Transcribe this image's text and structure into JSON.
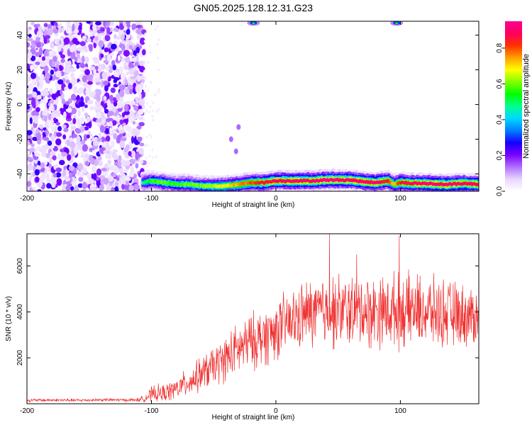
{
  "title": "GN05.2025.128.12.31.G23",
  "chart_data": [
    {
      "type": "heatmap",
      "title": "GN05.2025.128.12.31.G23",
      "xlabel": "Height of straight line (km)",
      "ylabel": "Frequency (Hz)",
      "xlim": [
        -200,
        163
      ],
      "ylim": [
        -50,
        48
      ],
      "xticks": [
        "-200",
        "-100",
        "0",
        "100"
      ],
      "yticks": [
        "-40",
        "-20",
        "0",
        "20",
        "40"
      ],
      "colorbar": {
        "label": "Normalized spectral amplitude",
        "range": [
          0.0,
          0.95
        ],
        "ticks": [
          "0.0",
          "0.2",
          "0.4",
          "0.6",
          "0.8"
        ],
        "colormap": [
          "#ffffff",
          "#e8d5ff",
          "#b070ff",
          "#7a00ff",
          "#1500ff",
          "#0080ff",
          "#00d8ff",
          "#00ff90",
          "#00ff00",
          "#80ff00",
          "#ffff00",
          "#ffa000",
          "#ff3000",
          "#ff0060",
          "#ff0090"
        ]
      },
      "noise_region": {
        "x_range": [
          -200,
          -106
        ],
        "f_range": [
          -50,
          48
        ],
        "note_level": "0.05-0.25"
      },
      "signal_ridge": {
        "x": [
          -107,
          -100,
          -90,
          -80,
          -70,
          -60,
          -50,
          -40,
          -30,
          -20,
          -10,
          0,
          10,
          20,
          30,
          40,
          50,
          60,
          70,
          80,
          90,
          95,
          100,
          110,
          120,
          130,
          140,
          150,
          163
        ],
        "frequency": [
          -45,
          -44,
          -45,
          -46,
          -46,
          -47,
          -47,
          -47,
          -46,
          -45,
          -45,
          -44,
          -44,
          -44,
          -44,
          -43.5,
          -43.5,
          -43.5,
          -44.5,
          -45,
          -44,
          -46,
          -45,
          -45.5,
          -45.5,
          -46,
          -46,
          -45.5,
          -46
        ],
        "amplitude": [
          0.45,
          0.55,
          0.6,
          0.55,
          0.6,
          0.6,
          0.65,
          0.7,
          0.75,
          0.8,
          0.85,
          0.88,
          0.9,
          0.9,
          0.9,
          0.92,
          0.92,
          0.9,
          0.9,
          0.9,
          0.85,
          0.7,
          0.85,
          0.88,
          0.9,
          0.9,
          0.9,
          0.88,
          0.9
        ]
      },
      "top_blobs": [
        {
          "x": -18,
          "frequency": 47
        },
        {
          "x": 97,
          "frequency": 47
        }
      ],
      "stray_points": [
        {
          "x": -32,
          "frequency": -27
        },
        {
          "x": -36,
          "frequency": -20
        },
        {
          "x": -30,
          "frequency": -13
        }
      ]
    },
    {
      "type": "line",
      "xlabel": "Height of straight line (km)",
      "ylabel": "SNR (10 * v/v)",
      "xlim": [
        -200,
        163
      ],
      "ylim": [
        0,
        7400
      ],
      "xticks": [
        "-200",
        "-100",
        "0",
        "100"
      ],
      "yticks": [
        "2000",
        "4000",
        "6000"
      ],
      "series": [
        {
          "color": "#f03030",
          "x": [
            -200,
            -180,
            -160,
            -140,
            -120,
            -110,
            -105,
            -100,
            -95,
            -90,
            -85,
            -80,
            -75,
            -70,
            -65,
            -60,
            -55,
            -50,
            -45,
            -40,
            -35,
            -30,
            -25,
            -20,
            -15,
            -10,
            -5,
            0,
            5,
            10,
            15,
            20,
            25,
            30,
            35,
            40,
            45,
            50,
            55,
            60,
            65,
            70,
            75,
            80,
            85,
            90,
            95,
            100,
            105,
            110,
            115,
            120,
            125,
            130,
            135,
            140,
            145,
            150,
            155,
            163
          ],
          "mean": [
            150,
            160,
            150,
            170,
            160,
            170,
            250,
            400,
            450,
            450,
            550,
            650,
            800,
            950,
            1100,
            1300,
            1450,
            1650,
            1800,
            2000,
            2200,
            2350,
            2550,
            2700,
            2800,
            2900,
            3050,
            3200,
            3400,
            3500,
            3600,
            3800,
            3900,
            3950,
            4000,
            4050,
            4000,
            4050,
            4000,
            4100,
            4050,
            4100,
            4000,
            4050,
            4050,
            4000,
            4100,
            4000,
            4050,
            4100,
            4050,
            4000,
            4000,
            3950,
            3950,
            3900,
            3900,
            3850,
            3800,
            3850
          ],
          "spread": [
            80,
            80,
            80,
            80,
            80,
            100,
            200,
            400,
            450,
            450,
            500,
            550,
            650,
            700,
            800,
            900,
            950,
            1000,
            1100,
            1200,
            1300,
            1300,
            1400,
            1450,
            1500,
            1500,
            1550,
            1550,
            1600,
            1600,
            1650,
            1700,
            1750,
            1800,
            1850,
            1900,
            1900,
            1900,
            1900,
            1900,
            1900,
            1900,
            1900,
            1900,
            1850,
            1850,
            1900,
            1900,
            1850,
            1850,
            1850,
            1800,
            1800,
            1750,
            1750,
            1700,
            1650,
            1600,
            1600,
            1550
          ]
        }
      ],
      "peaks": [
        {
          "x": 43,
          "y": 7400
        },
        {
          "x": 99,
          "y": 7300
        },
        {
          "x": 65,
          "y": 6500
        }
      ]
    }
  ]
}
